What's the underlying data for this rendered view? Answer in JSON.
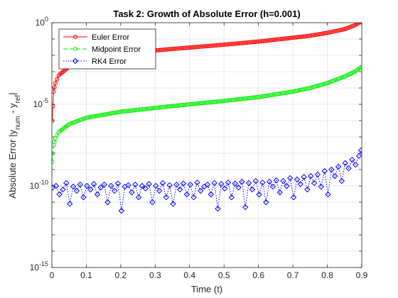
{
  "chart_data": {
    "type": "line",
    "title": "Task 2: Growth of Absolute Error (h=0.001)",
    "xlabel": "Time (t)",
    "ylabel": "Absolute Error |y_num - y_ref|",
    "ylabel_parts": {
      "main": "Absolute Error |y",
      "sub1": "num",
      "mid": " - y",
      "sub2": "ref",
      "end": "|"
    },
    "y_scale": "log",
    "xlim": [
      0,
      0.9
    ],
    "ylim": [
      1e-15,
      1
    ],
    "grid": true,
    "legend_position": "top-left",
    "x_ticks": [
      "0",
      "0.1",
      "0.2",
      "0.3",
      "0.4",
      "0.5",
      "0.6",
      "0.7",
      "0.8",
      "0.9"
    ],
    "x_tick_values": [
      0,
      0.1,
      0.2,
      0.3,
      0.4,
      0.5,
      0.6,
      0.7,
      0.8,
      0.9
    ],
    "y_ticks": [
      {
        "base": "10",
        "exp": "0",
        "value": 1
      },
      {
        "base": "10",
        "exp": "-5",
        "value": 1e-05
      },
      {
        "base": "10",
        "exp": "-10",
        "value": 1e-10
      },
      {
        "base": "10",
        "exp": "-15",
        "value": 1e-15
      }
    ],
    "series": [
      {
        "name": "Euler Error",
        "color": "#ff0000",
        "line": "solid",
        "marker": "circle",
        "x": [
          0.001,
          0.005,
          0.01,
          0.02,
          0.05,
          0.1,
          0.15,
          0.2,
          0.3,
          0.4,
          0.5,
          0.6,
          0.7,
          0.75,
          0.8,
          0.85,
          0.88,
          0.9
        ],
        "y": [
          1e-06,
          6e-05,
          0.0002,
          0.0006,
          0.002,
          0.005,
          0.008,
          0.012,
          0.02,
          0.03,
          0.045,
          0.07,
          0.12,
          0.16,
          0.24,
          0.4,
          0.7,
          1.2
        ]
      },
      {
        "name": "Midpoint Error",
        "color": "#00ee00",
        "line": "dashed",
        "marker": "circle",
        "x": [
          0.001,
          0.005,
          0.01,
          0.02,
          0.05,
          0.1,
          0.2,
          0.3,
          0.4,
          0.5,
          0.6,
          0.7,
          0.75,
          0.8,
          0.85,
          0.88,
          0.9
        ],
        "y": [
          3e-09,
          3e-08,
          8e-08,
          2e-07,
          6e-07,
          1.5e-06,
          3.5e-06,
          6e-06,
          1e-05,
          1.6e-05,
          2.8e-05,
          6e-05,
          0.0001,
          0.0002,
          0.0005,
          0.001,
          0.002
        ]
      },
      {
        "name": "RK4 Error",
        "color": "#0000ff",
        "line": "dotted",
        "marker": "diamond",
        "x": [
          0.002,
          0.012,
          0.022,
          0.032,
          0.042,
          0.052,
          0.062,
          0.072,
          0.082,
          0.092,
          0.102,
          0.112,
          0.122,
          0.132,
          0.142,
          0.152,
          0.162,
          0.172,
          0.182,
          0.192,
          0.202,
          0.212,
          0.222,
          0.232,
          0.242,
          0.252,
          0.262,
          0.272,
          0.282,
          0.292,
          0.302,
          0.312,
          0.322,
          0.332,
          0.342,
          0.352,
          0.362,
          0.372,
          0.382,
          0.392,
          0.402,
          0.412,
          0.422,
          0.432,
          0.442,
          0.452,
          0.462,
          0.472,
          0.482,
          0.492,
          0.502,
          0.512,
          0.522,
          0.532,
          0.542,
          0.552,
          0.562,
          0.572,
          0.582,
          0.592,
          0.602,
          0.612,
          0.622,
          0.632,
          0.642,
          0.652,
          0.662,
          0.672,
          0.682,
          0.692,
          0.702,
          0.712,
          0.722,
          0.732,
          0.742,
          0.752,
          0.762,
          0.772,
          0.782,
          0.792,
          0.802,
          0.812,
          0.822,
          0.832,
          0.842,
          0.852,
          0.862,
          0.872,
          0.882,
          0.892,
          0.898
        ],
        "y": [
          8e-11,
          1e-10,
          3e-11,
          6e-11,
          1.5e-10,
          8e-12,
          9e-11,
          5e-11,
          1.2e-10,
          2e-11,
          1e-10,
          6e-11,
          1.3e-10,
          3e-11,
          8e-11,
          1.2e-10,
          1e-11,
          1e-10,
          5e-11,
          1.4e-10,
          3e-12,
          9e-11,
          1.1e-10,
          4e-11,
          1.2e-10,
          2e-11,
          1e-10,
          7e-11,
          1.3e-10,
          1e-11,
          1e-10,
          5e-11,
          1.5e-10,
          2e-11,
          1.1e-10,
          8e-12,
          1.2e-10,
          6e-11,
          1.4e-10,
          3e-11,
          1.2e-10,
          2e-11,
          1.6e-10,
          5e-11,
          9e-11,
          1.2e-10,
          3e-11,
          1.5e-10,
          4e-12,
          1.3e-10,
          7e-11,
          1.6e-10,
          2e-11,
          1.4e-10,
          8e-11,
          1.8e-10,
          5e-12,
          1.5e-10,
          6e-11,
          2e-10,
          3e-11,
          1.6e-10,
          1e-11,
          1.8e-10,
          9e-11,
          2.2e-10,
          4e-11,
          2e-10,
          1e-10,
          3e-10,
          2e-11,
          2.5e-10,
          1.3e-10,
          3.5e-10,
          6e-11,
          4e-10,
          1.5e-10,
          5e-10,
          9e-11,
          8e-10,
          3e-11,
          1e-09,
          4e-10,
          1.5e-09,
          2e-10,
          2.5e-09,
          1.2e-09,
          4e-09,
          2e-09,
          7e-09,
          1.5e-08
        ]
      }
    ]
  }
}
